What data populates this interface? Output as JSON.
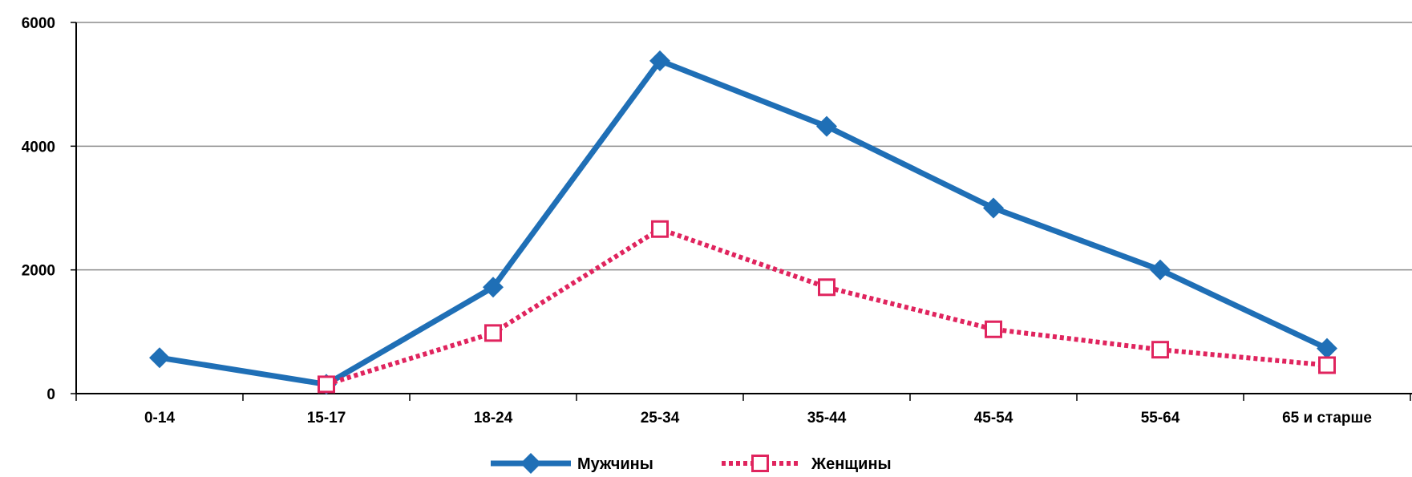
{
  "chart_data": {
    "type": "line",
    "categories": [
      "0-14",
      "15-17",
      "18-24",
      "25-34",
      "35-44",
      "45-54",
      "55-64",
      "65 и старше"
    ],
    "series": [
      {
        "name": "Мужчины",
        "values": [
          580,
          150,
          1720,
          5380,
          4320,
          3000,
          2000,
          730
        ],
        "color": "#1f6fb6",
        "marker": "diamond",
        "line_style": "solid"
      },
      {
        "name": "Женщины",
        "values": [
          null,
          150,
          980,
          2660,
          1720,
          1040,
          710,
          460
        ],
        "color": "#e0245e",
        "marker": "square-open",
        "line_style": "dotted"
      }
    ],
    "y_ticks": [
      0,
      2000,
      4000,
      6000
    ],
    "ylim": [
      0,
      6000
    ],
    "grid": true,
    "legend_position": "bottom-center",
    "title": "",
    "xlabel": "",
    "ylabel": ""
  }
}
